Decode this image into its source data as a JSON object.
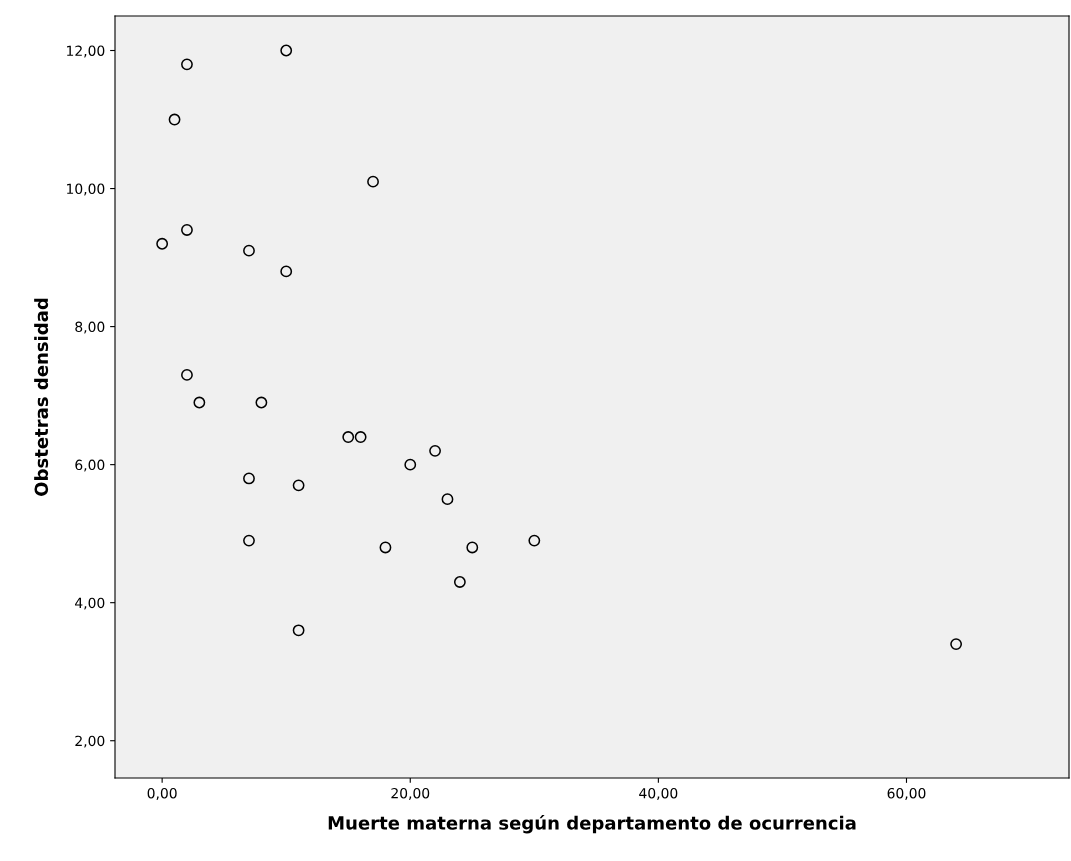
{
  "chart_data": {
    "type": "scatter",
    "xlabel": "Muerte materna según departamento de ocurrencia",
    "ylabel": "Obstetras densidad",
    "x": [
      2,
      10,
      1,
      17,
      0,
      2,
      7,
      10,
      2,
      3,
      8,
      15,
      16,
      22,
      20,
      7,
      11,
      23,
      7,
      18,
      25,
      30,
      24,
      11,
      64
    ],
    "series": [
      {
        "color": "#000000",
        "values": [
          11.8,
          12.0,
          11.0,
          10.1,
          9.2,
          9.4,
          9.1,
          8.8,
          7.3,
          6.9,
          6.9,
          6.4,
          6.4,
          6.2,
          6.0,
          5.8,
          5.7,
          5.5,
          4.9,
          4.8,
          4.8,
          4.9,
          4.3,
          3.6,
          3.4
        ]
      }
    ],
    "marker": "circle",
    "grid": false,
    "xlim": [
      -3.8,
      73.1
    ],
    "ylim": [
      1.46,
      12.5
    ],
    "xticks": [
      {
        "value": 0,
        "label": "0,00"
      },
      {
        "value": 20,
        "label": "20,00"
      },
      {
        "value": 40,
        "label": "40,00"
      },
      {
        "value": 60,
        "label": "60,00"
      }
    ],
    "yticks": [
      {
        "value": 2,
        "label": "2,00"
      },
      {
        "value": 4,
        "label": "4,00"
      },
      {
        "value": 6,
        "label": "6,00"
      },
      {
        "value": 8,
        "label": "8,00"
      },
      {
        "value": 10,
        "label": "10,00"
      },
      {
        "value": 12,
        "label": "12,00"
      }
    ]
  }
}
